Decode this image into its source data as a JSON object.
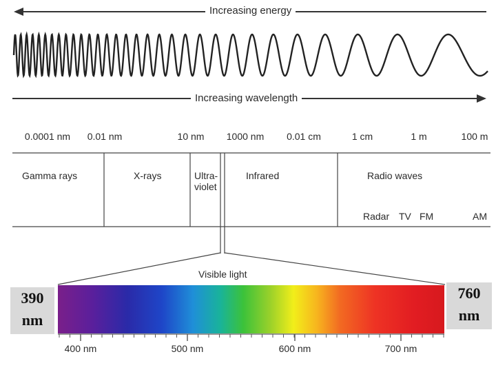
{
  "energy_label": "Increasing energy",
  "wavelength_label": "Increasing wavelength",
  "scale_labels": [
    "0.0001 nm",
    "0.01 nm",
    "10 nm",
    "1000 nm",
    "0.01 cm",
    "1 cm",
    "1 m",
    "100 m"
  ],
  "regions": {
    "gamma": "Gamma rays",
    "xrays": "X-rays",
    "uv_line1": "Ultra-",
    "uv_line2": "violet",
    "infrared": "Infrared",
    "radio": "Radio waves"
  },
  "radio_bands": [
    "Radar",
    "TV",
    "FM",
    "AM"
  ],
  "visible_label": "Visible light",
  "spectrum_ticks": [
    "400 nm",
    "500 nm",
    "600 nm",
    "700 nm"
  ],
  "left_edge": {
    "value": "390",
    "unit": "nm"
  },
  "right_edge": {
    "value": "760",
    "unit": "nm"
  }
}
